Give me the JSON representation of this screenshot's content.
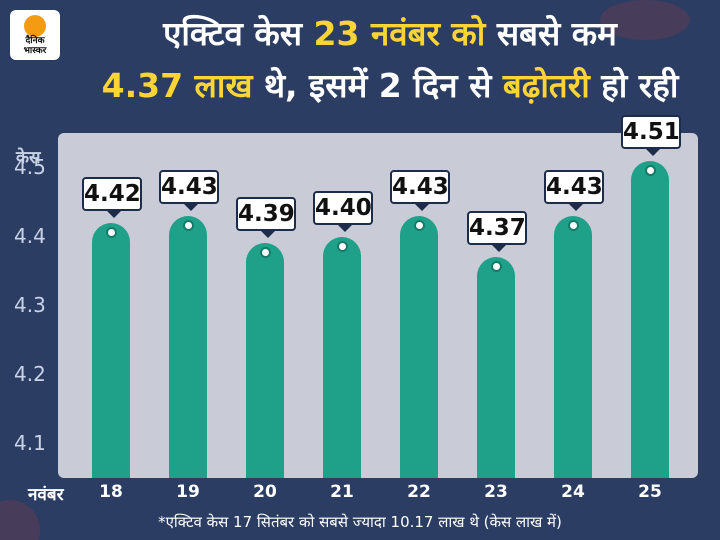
{
  "brand": {
    "logo_line1": "दैनिक",
    "logo_line2": "भास्कर"
  },
  "title": {
    "line1_part1": "एक्टिव केस ",
    "line1_highlight": "23 नवंबर को",
    "line1_part2": " सबसे कम",
    "line2_highlight1": "4.37 लाख",
    "line2_part1": " थे, इसमें 2 दिन से ",
    "line2_highlight2": "बढ़ोतरी",
    "line2_part2": " हो रही"
  },
  "chart_data": {
    "type": "bar",
    "title": "एक्टिव केस 23 नवंबर को सबसे कम 4.37 लाख थे, इसमें 2 दिन से बढ़ोतरी हो रही",
    "xlabel": "नवंबर",
    "ylabel": "केस",
    "categories": [
      "18",
      "19",
      "20",
      "21",
      "22",
      "23",
      "24",
      "25"
    ],
    "values": [
      4.42,
      4.43,
      4.39,
      4.4,
      4.43,
      4.37,
      4.43,
      4.51
    ],
    "value_labels": [
      "4.42",
      "4.43",
      "4.39",
      "4.40",
      "4.43",
      "4.37",
      "4.43",
      "4.51"
    ],
    "yticks": [
      "4.1",
      "4.2",
      "4.3",
      "4.4",
      "4.5"
    ],
    "ylim": [
      4.05,
      4.55
    ],
    "bar_color": "#1fa189",
    "grid": false
  },
  "footnote": "*एक्टिव केस 17 सितंबर को सबसे ज्यादा 10.17 लाख थे  (केस  लाख में)",
  "colors": {
    "background": "#2c3d63",
    "highlight": "#fcd535",
    "plot_bg": "#c9ccd6",
    "bar": "#1fa189"
  }
}
